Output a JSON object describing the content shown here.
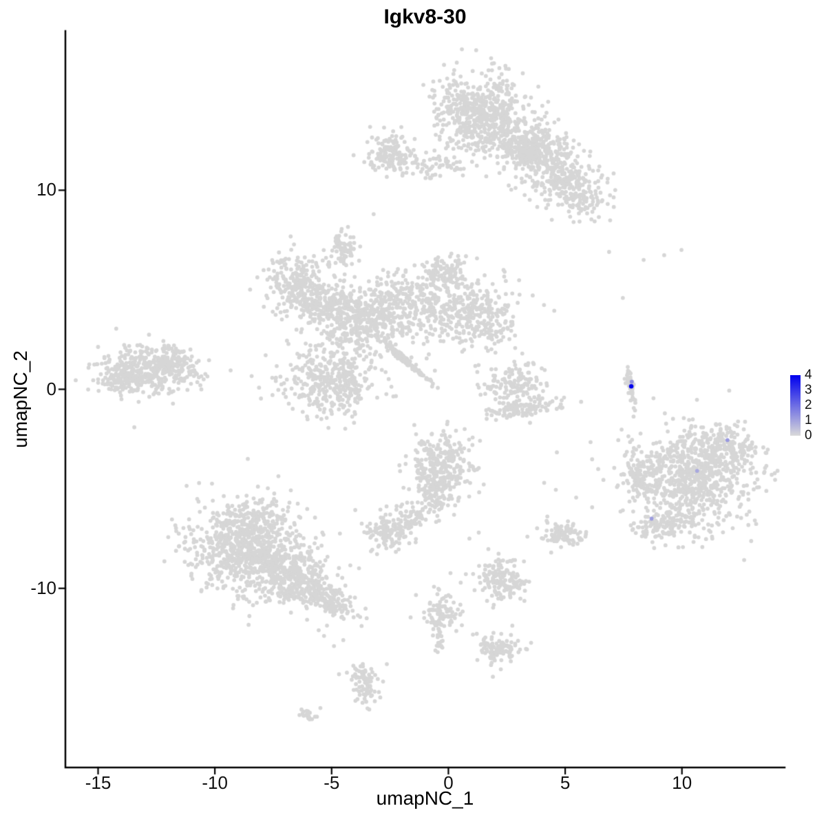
{
  "chart_data": {
    "type": "scatter",
    "title": "Igkv8-30",
    "xlabel": "umapNC_1",
    "ylabel": "umapNC_2",
    "xlim": [
      -16.4,
      14.4
    ],
    "ylim": [
      -19.0,
      18.0
    ],
    "x_ticks": [
      -15,
      -10,
      -5,
      0,
      5,
      10
    ],
    "y_ticks": [
      -10,
      0,
      10
    ],
    "grid": false,
    "legend_position": "right",
    "background": "#ffffff",
    "axis_color": "#000000",
    "point_color": "#d6d6d6",
    "point_radius": 2.9,
    "seed": 7,
    "expression_range": [
      0,
      4
    ],
    "low_color": "#d9d9d9",
    "high_color": "#0000ee",
    "clusters": [
      {
        "cx": 1.4,
        "cy": 14.3,
        "sx": 0.95,
        "sy": 0.85,
        "n": 380,
        "rot": 0
      },
      {
        "cx": 1.9,
        "cy": 12.9,
        "sx": 1.1,
        "sy": 0.7,
        "n": 280,
        "rot": -10
      },
      {
        "cx": 3.3,
        "cy": 12.2,
        "sx": 0.5,
        "sy": 0.5,
        "n": 120,
        "rot": 0
      },
      {
        "cx": 4.2,
        "cy": 11.6,
        "sx": 0.8,
        "sy": 0.7,
        "n": 260,
        "rot": -35
      },
      {
        "cx": 5.4,
        "cy": 10.0,
        "sx": 0.75,
        "sy": 0.6,
        "n": 220,
        "rot": -40
      },
      {
        "cx": -2.4,
        "cy": 11.8,
        "sx": 0.55,
        "sy": 0.45,
        "n": 140,
        "rot": -10
      },
      {
        "cx": -0.5,
        "cy": 11.3,
        "sx": 0.75,
        "sy": 0.3,
        "n": 60,
        "rot": 0
      },
      {
        "cx": -4.5,
        "cy": 7.1,
        "sx": 0.3,
        "sy": 0.45,
        "n": 70,
        "rot": 0
      },
      {
        "cx": -6.5,
        "cy": 5.2,
        "sx": 0.65,
        "sy": 0.8,
        "n": 260,
        "rot": 15
      },
      {
        "cx": -5.3,
        "cy": 4.3,
        "sx": 0.5,
        "sy": 0.5,
        "n": 120,
        "rot": 0
      },
      {
        "cx": -3.9,
        "cy": 3.5,
        "sx": 0.85,
        "sy": 0.9,
        "n": 330,
        "rot": 0
      },
      {
        "cx": -1.8,
        "cy": 4.2,
        "sx": 1.1,
        "sy": 0.95,
        "n": 360,
        "rot": 0
      },
      {
        "cx": 1.2,
        "cy": 3.8,
        "sx": 0.95,
        "sy": 0.8,
        "n": 300,
        "rot": -15
      },
      {
        "cx": -0.1,
        "cy": 5.7,
        "sx": 0.55,
        "sy": 0.5,
        "n": 110,
        "rot": 0
      },
      {
        "cx": -5.0,
        "cy": 0.4,
        "sx": 1.05,
        "sy": 0.85,
        "n": 380,
        "rot": 0
      },
      {
        "cx": -1.8,
        "cy": 1.4,
        "sx": 0.8,
        "sy": 0.06,
        "n": 130,
        "rot": -45
      },
      {
        "cx": -12.9,
        "cy": 1.0,
        "sx": 1.0,
        "sy": 0.62,
        "n": 330,
        "rot": 5
      },
      {
        "cx": -11.6,
        "cy": 1.2,
        "sx": 0.55,
        "sy": 0.45,
        "n": 110,
        "rot": 0
      },
      {
        "cx": -14.0,
        "cy": 0.6,
        "sx": 0.5,
        "sy": 0.4,
        "n": 90,
        "rot": 0
      },
      {
        "cx": 2.9,
        "cy": 0.3,
        "sx": 0.7,
        "sy": 0.5,
        "n": 150,
        "rot": 0
      },
      {
        "cx": 3.2,
        "cy": -0.95,
        "sx": 0.8,
        "sy": 0.2,
        "n": 110,
        "rot": 8
      },
      {
        "cx": 7.82,
        "cy": 0.0,
        "sx": 0.08,
        "sy": 0.55,
        "n": 50,
        "rot": 5
      },
      {
        "cx": 10.4,
        "cy": -4.4,
        "sx": 1.35,
        "sy": 1.25,
        "n": 780,
        "rot": 0
      },
      {
        "cx": 11.9,
        "cy": -2.9,
        "sx": 0.6,
        "sy": 0.55,
        "n": 140,
        "rot": 0
      },
      {
        "cx": 9.3,
        "cy": -6.8,
        "sx": 0.7,
        "sy": 0.4,
        "n": 120,
        "rot": 10
      },
      {
        "cx": 8.0,
        "cy": -4.3,
        "sx": 0.3,
        "sy": 0.55,
        "n": 70,
        "rot": 0
      },
      {
        "cx": -8.7,
        "cy": -7.9,
        "sx": 1.25,
        "sy": 1.05,
        "n": 780,
        "rot": -10
      },
      {
        "cx": -6.7,
        "cy": -9.4,
        "sx": 1.0,
        "sy": 0.7,
        "n": 350,
        "rot": -25
      },
      {
        "cx": -5.2,
        "cy": -10.6,
        "sx": 0.7,
        "sy": 0.45,
        "n": 160,
        "rot": -30
      },
      {
        "cx": -8.0,
        "cy": -6.3,
        "sx": 0.8,
        "sy": 0.4,
        "n": 90,
        "rot": 0
      },
      {
        "cx": -0.3,
        "cy": -3.7,
        "sx": 0.7,
        "sy": 0.75,
        "n": 260,
        "rot": 10
      },
      {
        "cx": -0.6,
        "cy": -5.3,
        "sx": 0.45,
        "sy": 0.6,
        "n": 120,
        "rot": 15
      },
      {
        "cx": -1.6,
        "cy": -6.4,
        "sx": 0.35,
        "sy": 0.35,
        "n": 50,
        "rot": 0
      },
      {
        "cx": -2.5,
        "cy": -7.1,
        "sx": 0.5,
        "sy": 0.42,
        "n": 140,
        "rot": 0
      },
      {
        "cx": 2.3,
        "cy": -9.6,
        "sx": 0.55,
        "sy": 0.5,
        "n": 160,
        "rot": -15
      },
      {
        "cx": 5.0,
        "cy": -7.3,
        "sx": 0.42,
        "sy": 0.3,
        "n": 90,
        "rot": 5
      },
      {
        "cx": -0.3,
        "cy": -11.2,
        "sx": 0.4,
        "sy": 0.5,
        "n": 90,
        "rot": 0
      },
      {
        "cx": -0.35,
        "cy": -12.5,
        "sx": 0.1,
        "sy": 0.5,
        "n": 25,
        "rot": 0
      },
      {
        "cx": 2.1,
        "cy": -13.0,
        "sx": 0.45,
        "sy": 0.4,
        "n": 110,
        "rot": 10
      },
      {
        "cx": -3.5,
        "cy": -14.9,
        "sx": 0.35,
        "sy": 0.6,
        "n": 80,
        "rot": 10
      },
      {
        "cx": -6.1,
        "cy": -16.4,
        "sx": 0.25,
        "sy": 0.18,
        "n": 22,
        "rot": 0
      }
    ],
    "singles": [
      [
        6.88,
        6.9
      ],
      [
        8.36,
        6.5
      ],
      [
        9.24,
        6.74
      ],
      [
        9.98,
        7.0
      ],
      [
        7.47,
        4.59
      ],
      [
        -3.2,
        8.8
      ],
      [
        4.1,
        -4.7
      ],
      [
        4.6,
        -5.05
      ],
      [
        0.9,
        -7.5
      ],
      [
        1.3,
        -7.2
      ],
      [
        -4.5,
        -12.6
      ],
      [
        -4.9,
        -12.9
      ]
    ],
    "expressing_cells": [
      {
        "x": 7.83,
        "y": 0.15,
        "value": 4
      },
      {
        "x": 7.85,
        "y": 0.38,
        "value": 1.4
      },
      {
        "x": 11.95,
        "y": -2.55,
        "value": 1.2
      },
      {
        "x": 10.65,
        "y": -4.1,
        "value": 0.9
      },
      {
        "x": 8.7,
        "y": -6.5,
        "value": 1.1
      }
    ]
  },
  "legend": {
    "ticks": [
      4,
      3,
      2,
      1,
      0
    ]
  }
}
